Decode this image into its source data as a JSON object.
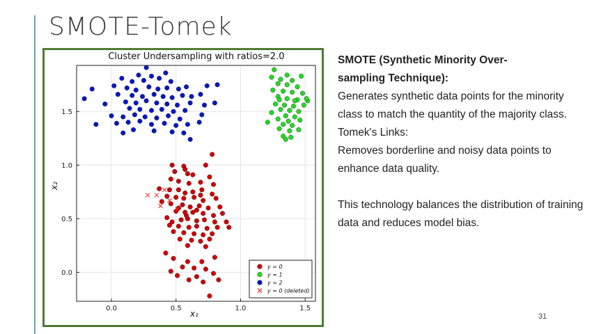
{
  "slide": {
    "title": "SMOTE-Tomek",
    "page_number": "31",
    "accent_color": "#6fa6a1",
    "frame_color": "#4f7a35"
  },
  "text": {
    "heading_line1": "SMOTE (Synthetic Minority Over-",
    "heading_line2": "sampling Technique):",
    "smote_desc": "Generates synthetic data points for the minority class to match the quantity of the majority class.",
    "tomek_heading": "Tomek's Links:",
    "tomek_desc": "Removes borderline and noisy data points to enhance data quality.",
    "summary": "This technology balances the distribution of training data and reduces model bias."
  },
  "chart_data": {
    "type": "scatter",
    "title": "Cluster Undersampling with ratios=2.0",
    "xlabel": "x₁",
    "ylabel": "x₂",
    "xlim": [
      -0.27,
      1.58
    ],
    "ylim": [
      -0.27,
      1.93
    ],
    "xticks": [
      0.0,
      0.5,
      1.0,
      1.5
    ],
    "xtick_labels": [
      "0.0",
      "0.5",
      "1.0",
      "1.5"
    ],
    "yticks": [
      0.0,
      0.5,
      1.0,
      1.5
    ],
    "ytick_labels": [
      "0.0",
      "0.5",
      "1.0",
      "1.5"
    ],
    "grid": true,
    "legend_position": "bottom-right",
    "series": [
      {
        "name": "y = 0",
        "marker": "circle",
        "color": "#d40000",
        "points": [
          [
            0.78,
            1.1
          ],
          [
            0.47,
            1.0
          ],
          [
            0.56,
            0.99
          ],
          [
            0.73,
            1.0
          ],
          [
            0.57,
            0.96
          ],
          [
            0.49,
            0.94
          ],
          [
            0.59,
            0.92
          ],
          [
            0.63,
            0.91
          ],
          [
            0.76,
            0.89
          ],
          [
            0.46,
            0.87
          ],
          [
            0.52,
            0.85
          ],
          [
            0.6,
            0.83
          ],
          [
            0.69,
            0.84
          ],
          [
            0.79,
            0.82
          ],
          [
            0.37,
            0.78
          ],
          [
            0.45,
            0.77
          ],
          [
            0.52,
            0.77
          ],
          [
            0.57,
            0.74
          ],
          [
            0.63,
            0.75
          ],
          [
            0.7,
            0.77
          ],
          [
            0.78,
            0.73
          ],
          [
            0.43,
            0.71
          ],
          [
            0.5,
            0.7
          ],
          [
            0.56,
            0.69
          ],
          [
            0.64,
            0.7
          ],
          [
            0.71,
            0.67
          ],
          [
            0.81,
            0.69
          ],
          [
            0.39,
            0.66
          ],
          [
            0.46,
            0.64
          ],
          [
            0.55,
            0.63
          ],
          [
            0.61,
            0.61
          ],
          [
            0.68,
            0.62
          ],
          [
            0.75,
            0.6
          ],
          [
            0.84,
            0.61
          ],
          [
            0.5,
            0.57
          ],
          [
            0.57,
            0.56
          ],
          [
            0.63,
            0.56
          ],
          [
            0.71,
            0.55
          ],
          [
            0.79,
            0.53
          ],
          [
            0.86,
            0.55
          ],
          [
            0.43,
            0.51
          ],
          [
            0.54,
            0.49
          ],
          [
            0.59,
            0.5
          ],
          [
            0.66,
            0.48
          ],
          [
            0.72,
            0.49
          ],
          [
            0.8,
            0.47
          ],
          [
            0.89,
            0.47
          ],
          [
            0.45,
            0.44
          ],
          [
            0.52,
            0.43
          ],
          [
            0.6,
            0.42
          ],
          [
            0.66,
            0.43
          ],
          [
            0.74,
            0.41
          ],
          [
            0.82,
            0.42
          ],
          [
            0.48,
            0.38
          ],
          [
            0.56,
            0.37
          ],
          [
            0.64,
            0.36
          ],
          [
            0.71,
            0.35
          ],
          [
            0.78,
            0.36
          ],
          [
            0.53,
            0.31
          ],
          [
            0.62,
            0.3
          ],
          [
            0.69,
            0.29
          ],
          [
            0.76,
            0.31
          ],
          [
            0.59,
            0.25
          ],
          [
            0.73,
            0.24
          ],
          [
            0.42,
            0.18
          ],
          [
            0.48,
            0.13
          ],
          [
            0.7,
            0.1
          ],
          [
            0.59,
            0.1
          ],
          [
            0.8,
            0.14
          ],
          [
            0.55,
            0.05
          ],
          [
            0.64,
            0.04
          ],
          [
            0.73,
            0.03
          ],
          [
            0.46,
            0.01
          ],
          [
            0.79,
            -0.01
          ],
          [
            0.51,
            -0.03
          ],
          [
            0.66,
            -0.04
          ],
          [
            0.6,
            -0.07
          ],
          [
            0.71,
            -0.09
          ],
          [
            0.83,
            -0.07
          ],
          [
            0.76,
            -0.22
          ],
          [
            0.91,
            0.42
          ],
          [
            0.66,
            0.58
          ],
          [
            0.52,
            0.6
          ],
          [
            0.58,
            0.53
          ],
          [
            0.69,
            0.72
          ],
          [
            0.47,
            0.47
          ]
        ]
      },
      {
        "name": "y = 1",
        "marker": "circle",
        "color": "#22dd22",
        "points": [
          [
            1.26,
            1.89
          ],
          [
            1.36,
            1.84
          ],
          [
            1.24,
            1.82
          ],
          [
            1.31,
            1.8
          ],
          [
            1.4,
            1.79
          ],
          [
            1.47,
            1.83
          ],
          [
            1.29,
            1.76
          ],
          [
            1.36,
            1.75
          ],
          [
            1.44,
            1.73
          ],
          [
            1.25,
            1.7
          ],
          [
            1.33,
            1.69
          ],
          [
            1.4,
            1.68
          ],
          [
            1.48,
            1.67
          ],
          [
            1.29,
            1.64
          ],
          [
            1.36,
            1.62
          ],
          [
            1.44,
            1.61
          ],
          [
            1.52,
            1.6
          ],
          [
            1.27,
            1.57
          ],
          [
            1.34,
            1.56
          ],
          [
            1.41,
            1.55
          ],
          [
            1.49,
            1.56
          ],
          [
            1.31,
            1.52
          ],
          [
            1.38,
            1.51
          ],
          [
            1.45,
            1.5
          ],
          [
            1.24,
            1.49
          ],
          [
            1.35,
            1.46
          ],
          [
            1.42,
            1.45
          ],
          [
            1.29,
            1.43
          ],
          [
            1.37,
            1.41
          ],
          [
            1.46,
            1.42
          ],
          [
            1.21,
            1.4
          ],
          [
            1.33,
            1.38
          ],
          [
            1.4,
            1.37
          ],
          [
            1.3,
            1.34
          ],
          [
            1.38,
            1.32
          ],
          [
            1.45,
            1.33
          ],
          [
            1.33,
            1.27
          ],
          [
            1.39,
            1.26
          ],
          [
            1.35,
            1.24
          ],
          [
            1.42,
            1.6
          ],
          [
            1.3,
            1.61
          ],
          [
            1.51,
            1.62
          ]
        ]
      },
      {
        "name": "y = 2",
        "marker": "circle",
        "color": "#0018c8",
        "points": [
          [
            0.27,
            1.91
          ],
          [
            0.42,
            1.86
          ],
          [
            0.21,
            1.84
          ],
          [
            0.08,
            1.81
          ],
          [
            0.31,
            1.83
          ],
          [
            0.37,
            1.81
          ],
          [
            0.16,
            1.78
          ],
          [
            0.25,
            1.79
          ],
          [
            0.46,
            1.78
          ],
          [
            -0.15,
            1.71
          ],
          [
            0.02,
            1.74
          ],
          [
            0.12,
            1.72
          ],
          [
            0.19,
            1.7
          ],
          [
            0.29,
            1.73
          ],
          [
            0.36,
            1.71
          ],
          [
            0.43,
            1.72
          ],
          [
            0.52,
            1.71
          ],
          [
            0.58,
            1.73
          ],
          [
            0.74,
            1.74
          ],
          [
            0.82,
            1.75
          ],
          [
            -0.21,
            1.62
          ],
          [
            0.05,
            1.66
          ],
          [
            0.16,
            1.65
          ],
          [
            0.24,
            1.64
          ],
          [
            0.33,
            1.66
          ],
          [
            0.4,
            1.64
          ],
          [
            0.47,
            1.63
          ],
          [
            0.55,
            1.65
          ],
          [
            0.62,
            1.64
          ],
          [
            0.69,
            1.66
          ],
          [
            -0.05,
            1.57
          ],
          [
            0.11,
            1.59
          ],
          [
            0.19,
            1.58
          ],
          [
            0.27,
            1.6
          ],
          [
            0.35,
            1.58
          ],
          [
            0.43,
            1.57
          ],
          [
            0.51,
            1.56
          ],
          [
            0.61,
            1.58
          ],
          [
            0.72,
            1.56
          ],
          [
            0.8,
            1.58
          ],
          [
            0.14,
            1.53
          ],
          [
            0.22,
            1.52
          ],
          [
            0.31,
            1.51
          ],
          [
            0.39,
            1.52
          ],
          [
            0.48,
            1.5
          ],
          [
            0.57,
            1.51
          ],
          [
            0.0,
            1.46
          ],
          [
            0.09,
            1.45
          ],
          [
            0.18,
            1.47
          ],
          [
            0.26,
            1.45
          ],
          [
            0.35,
            1.44
          ],
          [
            0.44,
            1.46
          ],
          [
            0.53,
            1.43
          ],
          [
            0.7,
            1.47
          ],
          [
            -0.12,
            1.38
          ],
          [
            0.04,
            1.39
          ],
          [
            0.13,
            1.4
          ],
          [
            0.22,
            1.41
          ],
          [
            0.31,
            1.38
          ],
          [
            0.41,
            1.39
          ],
          [
            0.5,
            1.37
          ],
          [
            0.59,
            1.38
          ],
          [
            0.68,
            1.4
          ],
          [
            0.17,
            1.33
          ],
          [
            0.33,
            1.32
          ],
          [
            0.47,
            1.31
          ],
          [
            0.09,
            1.3
          ],
          [
            0.56,
            1.3
          ],
          [
            0.61,
            1.24
          ]
        ]
      },
      {
        "name": "y = 0 (deleted)",
        "marker": "x",
        "color": "#ff2020",
        "points": [
          [
            0.41,
            0.77
          ],
          [
            0.28,
            0.72
          ],
          [
            0.45,
            0.67
          ],
          [
            0.38,
            0.62
          ],
          [
            0.51,
            0.59
          ],
          [
            0.35,
            0.72
          ]
        ]
      }
    ],
    "legend": [
      {
        "label": "y = 0",
        "marker": "circle",
        "color": "#d40000"
      },
      {
        "label": "y = 1",
        "marker": "circle",
        "color": "#22dd22"
      },
      {
        "label": "y = 2",
        "marker": "circle",
        "color": "#0018c8"
      },
      {
        "label": "y = 0 (deleted)",
        "marker": "x",
        "color": "#ff2020"
      }
    ]
  }
}
